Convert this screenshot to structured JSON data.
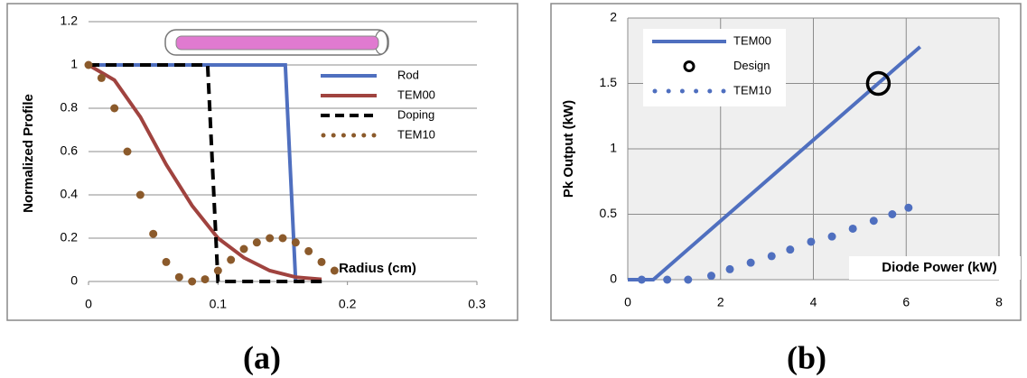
{
  "chart_data": [
    {
      "type": "line",
      "label": "(a)",
      "x_label": "Radius (cm)",
      "y_label": "Normalized Profile",
      "xlim": [
        0,
        0.3
      ],
      "ylim": [
        0,
        1.2
      ],
      "xticks": [
        0,
        0.1,
        0.2,
        0.3
      ],
      "yticks": [
        0,
        0.2,
        0.4,
        0.6,
        0.8,
        1,
        1.2
      ],
      "grid": "horizontal",
      "legend": "right",
      "series": [
        {
          "name": "Rod",
          "color": "#4f6fbf",
          "line_style": "solid",
          "x": [
            0,
            0.152,
            0.16
          ],
          "values": [
            1,
            1,
            0
          ]
        },
        {
          "name": "TEM00",
          "color": "#a0433f",
          "line_style": "solid",
          "x": [
            0,
            0.02,
            0.04,
            0.06,
            0.08,
            0.1,
            0.12,
            0.14,
            0.16,
            0.18
          ],
          "values": [
            1,
            0.93,
            0.76,
            0.54,
            0.35,
            0.2,
            0.11,
            0.05,
            0.02,
            0.01
          ]
        },
        {
          "name": "Doping",
          "color": "#000000",
          "line_style": "dashed",
          "x": [
            0,
            0.092,
            0.1,
            0.185
          ],
          "values": [
            1,
            1,
            0,
            0
          ]
        },
        {
          "name": "TEM10",
          "color": "#8b5a2b",
          "line_style": "dots",
          "x": [
            0,
            0.01,
            0.02,
            0.03,
            0.04,
            0.05,
            0.06,
            0.07,
            0.08,
            0.09,
            0.1,
            0.11,
            0.12,
            0.13,
            0.14,
            0.15,
            0.16,
            0.17,
            0.18,
            0.19
          ],
          "values": [
            1,
            0.94,
            0.8,
            0.6,
            0.4,
            0.22,
            0.09,
            0.02,
            0,
            0.01,
            0.05,
            0.1,
            0.15,
            0.18,
            0.2,
            0.2,
            0.18,
            0.14,
            0.09,
            0.05
          ]
        }
      ]
    },
    {
      "type": "line",
      "label": "(b)",
      "x_label": "Diode Power (kW)",
      "y_label": "Pk Output  (kW)",
      "xlim": [
        0,
        8
      ],
      "ylim": [
        0,
        2
      ],
      "xticks": [
        0,
        2,
        4,
        6,
        8
      ],
      "yticks": [
        0,
        0.5,
        1,
        1.5,
        2
      ],
      "grid": "both",
      "legend": "top-left",
      "series": [
        {
          "name": "TEM00",
          "color": "#4f6fbf",
          "line_style": "solid",
          "x": [
            0,
            0.55,
            6.3
          ],
          "values": [
            0,
            0,
            1.78
          ]
        },
        {
          "name": "Design",
          "color": "#000000",
          "line_style": "circle",
          "x": [
            5.4
          ],
          "values": [
            1.5
          ]
        },
        {
          "name": "TEM10",
          "color": "#4f6fbf",
          "line_style": "dots",
          "x": [
            0.3,
            0.85,
            1.3,
            1.8,
            2.2,
            2.65,
            3.1,
            3.5,
            3.95,
            4.4,
            4.85,
            5.3,
            5.7,
            6.05
          ],
          "values": [
            0,
            0,
            0,
            0.03,
            0.08,
            0.13,
            0.18,
            0.23,
            0.29,
            0.33,
            0.39,
            0.45,
            0.5,
            0.55
          ]
        }
      ]
    }
  ]
}
